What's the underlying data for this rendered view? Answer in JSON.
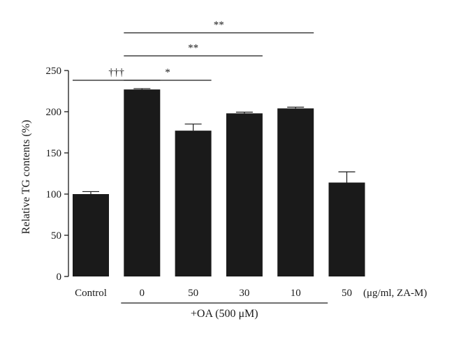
{
  "chart_data": {
    "type": "bar",
    "ylabel": "Relative TG contents (%)",
    "ylim": [
      0,
      250
    ],
    "yticks": [
      0,
      50,
      100,
      150,
      200,
      250
    ],
    "categories": [
      "Control",
      "0",
      "50",
      "30",
      "10",
      "50"
    ],
    "values": [
      100,
      227,
      177,
      198,
      204,
      114
    ],
    "errors": [
      3,
      1,
      8,
      1.5,
      1.5,
      13
    ],
    "bar_color": "#1a1a1a",
    "unit_label": "(μg/ml, ZA-M)",
    "group_label": "+OA (500 μM)",
    "group_members": [
      1,
      2,
      3,
      4
    ],
    "significance": [
      {
        "from": 0,
        "to": 1,
        "label": "†††"
      },
      {
        "from": 1,
        "to": 2,
        "label": "*"
      },
      {
        "from": 1,
        "to": 3,
        "label": "**"
      },
      {
        "from": 1,
        "to": 4,
        "label": "**"
      }
    ]
  }
}
